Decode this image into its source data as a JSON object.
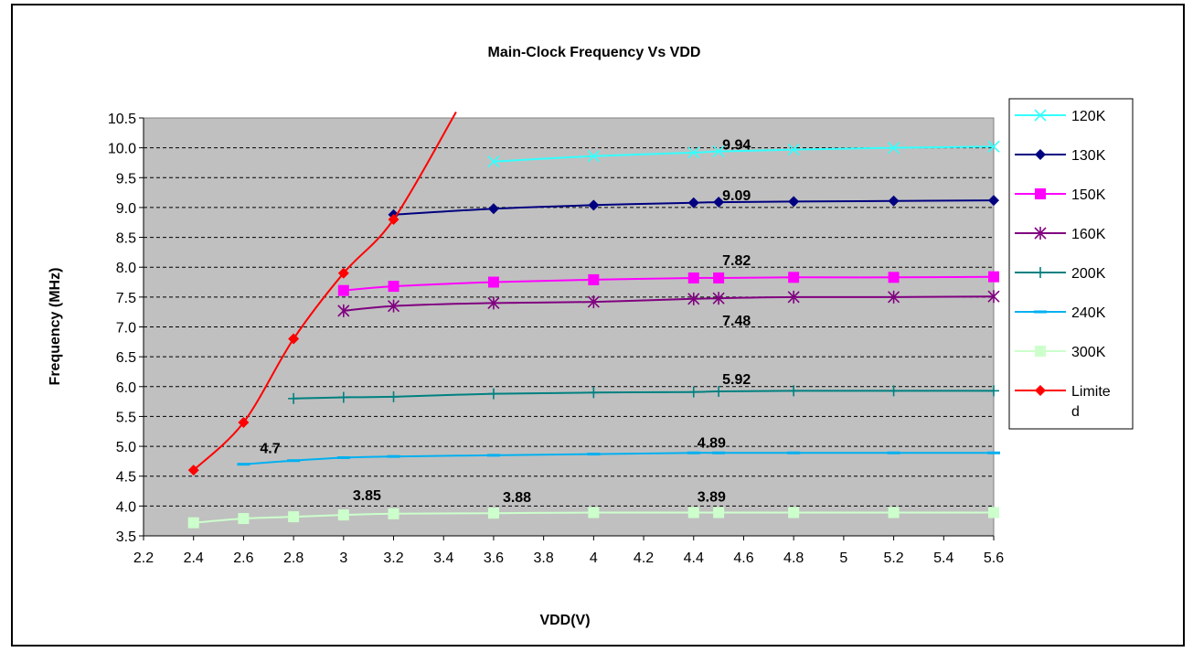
{
  "chart_data": {
    "type": "line",
    "title": "Main-Clock Frequency Vs VDD",
    "xlabel": "VDD(V)",
    "ylabel": "Frequency (MHz)",
    "xlim": [
      2.2,
      5.6
    ],
    "ylim": [
      3.5,
      10.5
    ],
    "x_ticks": [
      "2.2",
      "2.4",
      "2.6",
      "2.8",
      "3",
      "3.2",
      "3.4",
      "3.6",
      "3.8",
      "4",
      "4.2",
      "4.4",
      "4.6",
      "4.8",
      "5",
      "5.2",
      "5.4",
      "5.6"
    ],
    "y_ticks": [
      "3.5",
      "4.0",
      "4.5",
      "5.0",
      "5.5",
      "6.0",
      "6.5",
      "7.0",
      "7.5",
      "8.0",
      "8.5",
      "9.0",
      "9.5",
      "10.0",
      "10.5"
    ],
    "y_grid": "dashed",
    "plot_background": "#c0c0c0",
    "legend_position": "right",
    "series": [
      {
        "name": "120K",
        "color": "#33ffff",
        "marker": "x",
        "x": [
          3.6,
          4.0,
          4.4,
          4.5,
          4.8,
          5.2,
          5.6
        ],
        "y": [
          9.77,
          9.86,
          9.92,
          9.94,
          9.97,
          10.0,
          10.02
        ]
      },
      {
        "name": "130K",
        "color": "#000080",
        "marker": "diamond",
        "x": [
          3.2,
          3.6,
          4.0,
          4.4,
          4.5,
          4.8,
          5.2,
          5.6
        ],
        "y": [
          8.88,
          8.98,
          9.04,
          9.08,
          9.09,
          9.1,
          9.11,
          9.12
        ]
      },
      {
        "name": "150K",
        "color": "#ff00ff",
        "marker": "square",
        "x": [
          3.0,
          3.2,
          3.6,
          4.0,
          4.4,
          4.5,
          4.8,
          5.2,
          5.6
        ],
        "y": [
          7.61,
          7.68,
          7.75,
          7.79,
          7.82,
          7.82,
          7.83,
          7.83,
          7.84
        ]
      },
      {
        "name": "160K",
        "color": "#800080",
        "marker": "asterisk",
        "x": [
          3.0,
          3.2,
          3.6,
          4.0,
          4.4,
          4.5,
          4.8,
          5.2,
          5.6
        ],
        "y": [
          7.27,
          7.35,
          7.4,
          7.42,
          7.47,
          7.48,
          7.5,
          7.5,
          7.51
        ]
      },
      {
        "name": "200K",
        "color": "#008080",
        "marker": "plus",
        "x": [
          2.8,
          3.0,
          3.2,
          3.6,
          4.0,
          4.4,
          4.5,
          4.8,
          5.2,
          5.6
        ],
        "y": [
          5.8,
          5.82,
          5.83,
          5.88,
          5.9,
          5.91,
          5.92,
          5.93,
          5.93,
          5.93
        ]
      },
      {
        "name": "240K",
        "color": "#00b0f0",
        "marker": "dash",
        "x": [
          2.6,
          2.8,
          3.0,
          3.2,
          3.6,
          4.0,
          4.4,
          4.5,
          4.8,
          5.2,
          5.6
        ],
        "y": [
          4.7,
          4.76,
          4.81,
          4.83,
          4.85,
          4.87,
          4.89,
          4.89,
          4.89,
          4.89,
          4.89
        ]
      },
      {
        "name": "300K",
        "color": "#ccffcc",
        "marker": "square",
        "x": [
          2.4,
          2.6,
          2.8,
          3.0,
          3.2,
          3.6,
          4.0,
          4.4,
          4.5,
          4.8,
          5.2,
          5.6
        ],
        "y": [
          3.72,
          3.79,
          3.82,
          3.85,
          3.87,
          3.88,
          3.89,
          3.89,
          3.89,
          3.89,
          3.89,
          3.89
        ]
      },
      {
        "name": "Limite\nd",
        "color": "#ff0000",
        "marker": "diamond",
        "x": [
          2.4,
          2.6,
          2.8,
          3.0,
          3.2,
          3.45
        ],
        "y": [
          4.6,
          5.4,
          6.8,
          7.9,
          8.8,
          10.6
        ]
      }
    ],
    "annotations": [
      {
        "text": "9.94",
        "x": 4.5,
        "y": 9.94
      },
      {
        "text": "9.09",
        "x": 4.5,
        "y": 9.09
      },
      {
        "text": "7.82",
        "x": 4.5,
        "y": 7.82
      },
      {
        "text": "7.48",
        "x": 4.5,
        "y": 7.48
      },
      {
        "text": "5.92",
        "x": 4.5,
        "y": 5.92
      },
      {
        "text": "4.89",
        "x": 4.4,
        "y": 4.89
      },
      {
        "text": "4.7",
        "x": 2.6,
        "y": 4.7
      },
      {
        "text": "3.85",
        "x": 3.0,
        "y": 3.85
      },
      {
        "text": "3.88",
        "x": 3.6,
        "y": 3.88
      },
      {
        "text": "3.89",
        "x": 4.4,
        "y": 3.89
      }
    ]
  }
}
